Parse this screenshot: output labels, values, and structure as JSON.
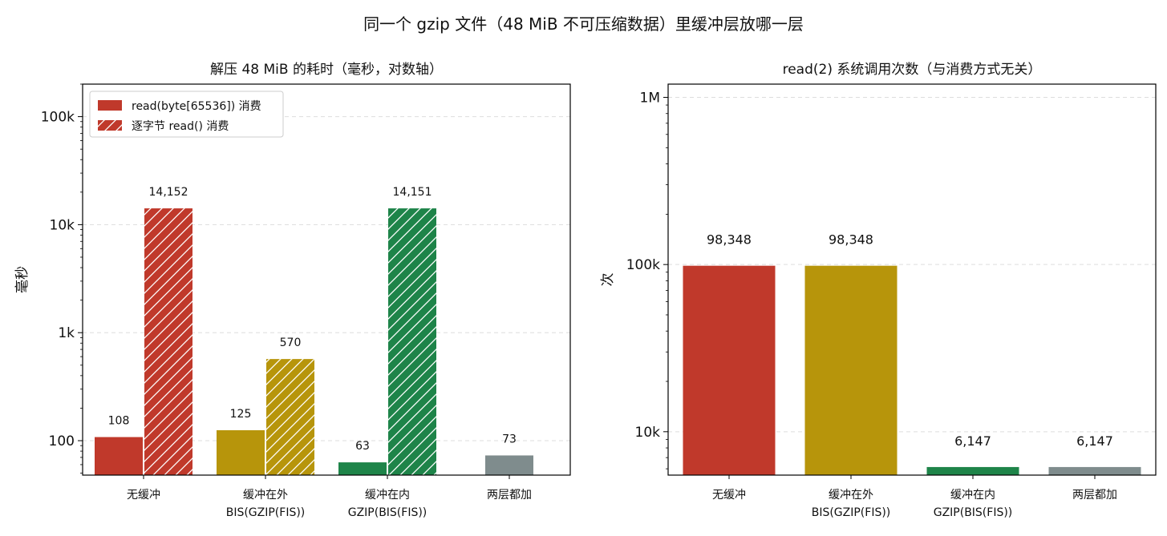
{
  "figure_title": "同一个 gzip 文件（48 MiB 不可压缩数据）里缓冲层放哪一层",
  "colors": {
    "red": "#c0392b",
    "gold": "#b7950b",
    "green": "#1e8449",
    "gray": "#7f8c8d",
    "grid": "#dddddd",
    "axis": "#000000"
  },
  "chart_data": [
    {
      "type": "bar",
      "title": "解压 48 MiB 的耗时（毫秒，对数轴）",
      "ylabel": "毫秒",
      "yscale": "log",
      "ylim": [
        48,
        200000
      ],
      "yticks": [
        {
          "value": 100,
          "label": "100"
        },
        {
          "value": 1000,
          "label": "1k"
        },
        {
          "value": 10000,
          "label": "10k"
        },
        {
          "value": 100000,
          "label": "100k"
        }
      ],
      "grid": true,
      "legend_position": "top-left",
      "categories": [
        {
          "lines": [
            "无缓冲"
          ],
          "color": "red"
        },
        {
          "lines": [
            "缓冲在外",
            "BIS(GZIP(FIS))"
          ],
          "color": "gold"
        },
        {
          "lines": [
            "缓冲在内",
            "GZIP(BIS(FIS))"
          ],
          "color": "green"
        },
        {
          "lines": [
            "两层都加"
          ],
          "color": "gray"
        }
      ],
      "series": [
        {
          "name": "read(byte[65536]) 消费",
          "hatch": false,
          "values": [
            108,
            125,
            63,
            73
          ],
          "labels": [
            "108",
            "125",
            "63",
            "73"
          ]
        },
        {
          "name": "逐字节 read() 消费",
          "hatch": true,
          "values": [
            14152,
            570,
            14151,
            null
          ],
          "labels": [
            "14,152",
            "570",
            "14,151",
            ""
          ]
        }
      ]
    },
    {
      "type": "bar",
      "title": "read(2) 系统调用次数（与消费方式无关）",
      "ylabel": "次",
      "yscale": "log",
      "ylim": [
        5500,
        1200000
      ],
      "yticks": [
        {
          "value": 10000,
          "label": "10k"
        },
        {
          "value": 100000,
          "label": "100k"
        },
        {
          "value": 1000000,
          "label": "1M"
        }
      ],
      "grid": true,
      "categories": [
        {
          "lines": [
            "无缓冲"
          ],
          "color": "red"
        },
        {
          "lines": [
            "缓冲在外",
            "BIS(GZIP(FIS))"
          ],
          "color": "gold"
        },
        {
          "lines": [
            "缓冲在内",
            "GZIP(BIS(FIS))"
          ],
          "color": "green"
        },
        {
          "lines": [
            "两层都加"
          ],
          "color": "gray"
        }
      ],
      "values": [
        98348,
        98348,
        6147,
        6147
      ],
      "labels": [
        "98,348",
        "98,348",
        "6,147",
        "6,147"
      ]
    }
  ]
}
